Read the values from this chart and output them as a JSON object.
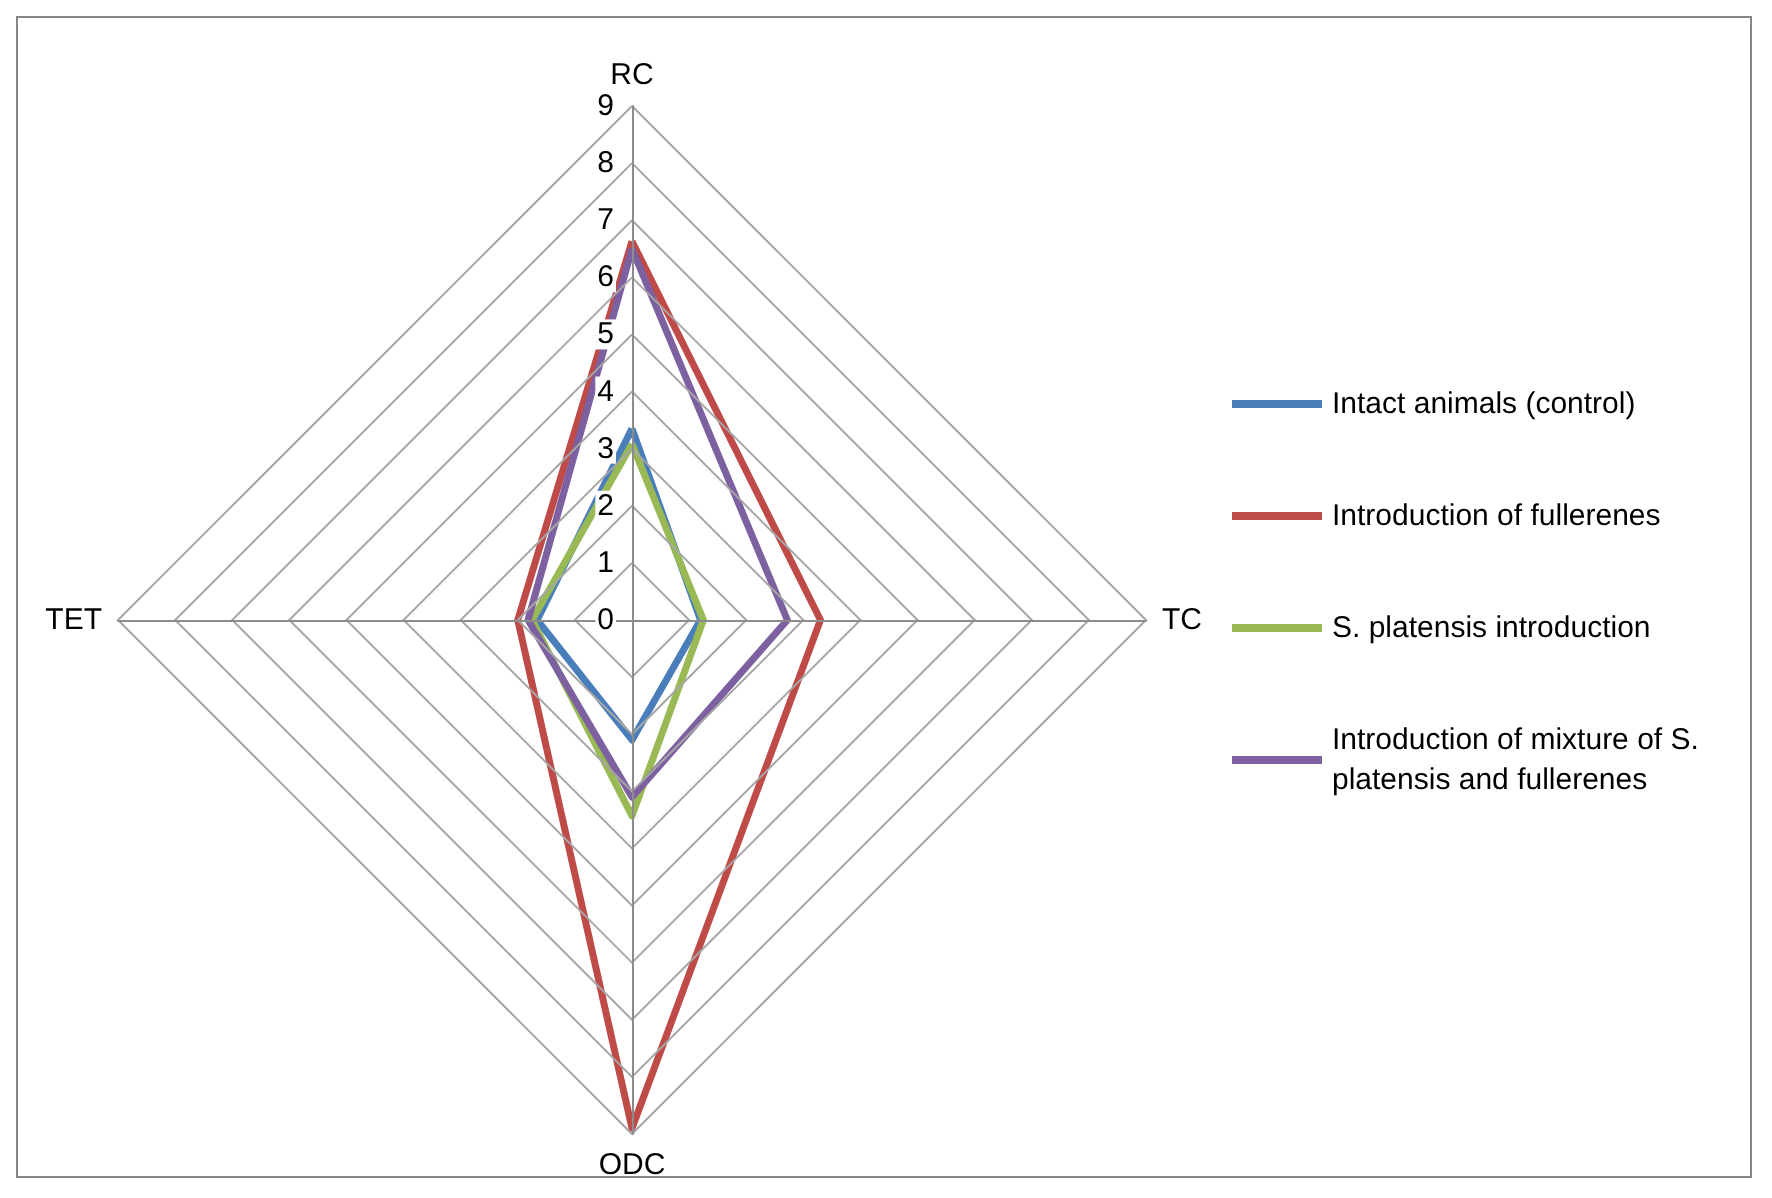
{
  "chart_data": {
    "type": "radar",
    "categories": [
      "RC",
      "TC",
      "ODC",
      "TET"
    ],
    "ylim": [
      0,
      9
    ],
    "yticks": [
      0,
      1,
      2,
      3,
      4,
      5,
      6,
      7,
      8,
      9
    ],
    "grid": true,
    "legend": "right",
    "series": [
      {
        "name": "Intact animals (control)",
        "color": "#4a7ebb",
        "values": [
          3.35,
          1.2,
          2.1,
          1.66
        ]
      },
      {
        "name": "Introduction of fullerenes",
        "color": "#be4b48",
        "values": [
          6.63,
          3.3,
          8.9,
          2.0
        ]
      },
      {
        "name": "S. platensis introduction",
        "color": "#98b954",
        "values": [
          3.08,
          1.25,
          3.43,
          1.75
        ]
      },
      {
        "name": "Introduction of mixture of S. platensis and fullerenes",
        "color": "#7d60a0",
        "values": [
          6.5,
          2.72,
          3.1,
          1.82
        ]
      }
    ]
  }
}
